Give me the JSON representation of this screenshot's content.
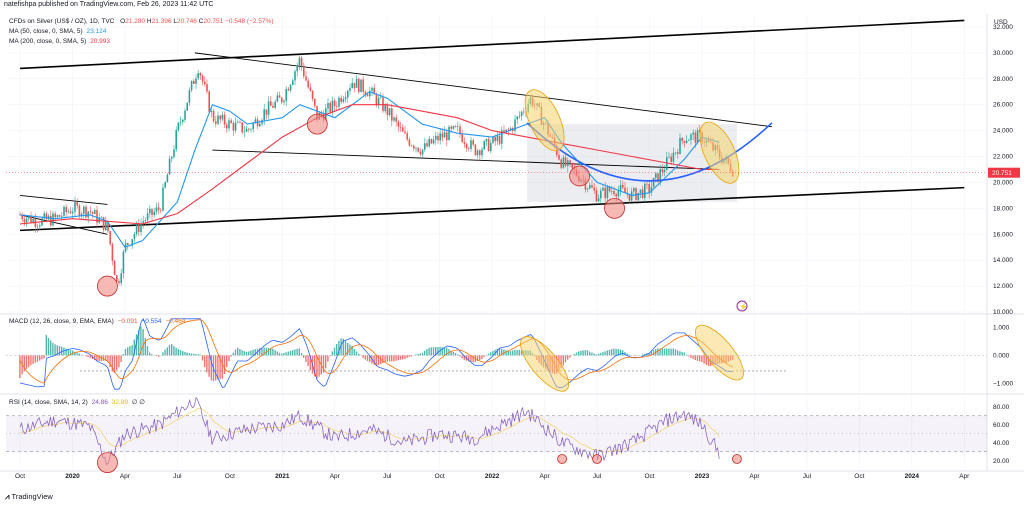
{
  "header": {
    "published": "natefishpa published on TradingView.com, Feb 26, 2023 11:42 UTC"
  },
  "price_legend": {
    "symbol": "CFDs on Silver (US$ / OZ), 1D, TVC",
    "o_label": "O",
    "o": "21.280",
    "h_label": "H",
    "h": "21.396",
    "l_label": "L",
    "l": "20.746",
    "c_label": "C",
    "c": "20.751",
    "change": "−0.548 (−2.57%)",
    "ma50": "MA (50, close, 0, SMA, 5)",
    "ma50_value": "23.124",
    "ma200": "MA (200, close, 0, SMA, 5)",
    "ma200_value": "20.993"
  },
  "macd_legend": {
    "label": "MACD (12, 26, close, 9, EMA, EMA)",
    "v1": "−0.091",
    "v2": "−0.554",
    "v3": "−0.464"
  },
  "rsi_legend": {
    "label": "RSI (14, close, SMA, 14, 2)",
    "v1": "24.86",
    "v2": "32.89",
    "v3": "∅ ∅"
  },
  "footer": {
    "logo_text": "TradingView"
  },
  "colors": {
    "candle_up": "#26a69a",
    "candle_down": "#ef5350",
    "ma50": "#2196f3",
    "ma200": "#f23645",
    "macd_line": "#2962ff",
    "signal_line": "#ff6d00",
    "rsi_line": "#7e57c2",
    "circle_fill": "#f28b82",
    "ellipse_fill": "#f6d36b",
    "arc": "#2962ff",
    "price_tag": "#f23645"
  },
  "chart_data": [
    {
      "type": "candlestick",
      "title": "CFDs on Silver (US$ / OZ), 1D, TVC",
      "currency": "USD",
      "x_ticks": [
        "Oct",
        "2020",
        "Apr",
        "Jul",
        "Oct",
        "2021",
        "Apr",
        "Jul",
        "Oct",
        "2022",
        "Apr",
        "Jul",
        "Oct",
        "2023",
        "Apr",
        "Jul",
        "Oct",
        "2024",
        "Apr"
      ],
      "ylim": [
        10,
        33
      ],
      "y_ticks": [
        "10.000",
        "12.000",
        "14.000",
        "16.000",
        "18.000",
        "20.000",
        "22.000",
        "24.000",
        "26.000",
        "28.000",
        "30.000",
        "32.000"
      ],
      "last_price": "20.751",
      "approx_close_series": {
        "dates": [
          "2019-10",
          "2019-11",
          "2019-12",
          "2020-01",
          "2020-02",
          "2020-03-01",
          "2020-03-18",
          "2020-04",
          "2020-05",
          "2020-06",
          "2020-07",
          "2020-08-07",
          "2020-09",
          "2020-10",
          "2020-11",
          "2020-12",
          "2021-01",
          "2021-02-01",
          "2021-03",
          "2021-04",
          "2021-05",
          "2021-06",
          "2021-07",
          "2021-08",
          "2021-09",
          "2021-10",
          "2021-11",
          "2021-12",
          "2022-01",
          "2022-02",
          "2022-03-08",
          "2022-04",
          "2022-05",
          "2022-06",
          "2022-07",
          "2022-08",
          "2022-09",
          "2022-10",
          "2022-11",
          "2022-12",
          "2023-01",
          "2023-02-24"
        ],
        "values": [
          17.5,
          17.0,
          17.2,
          18.0,
          17.8,
          16.5,
          12.0,
          15.0,
          17.0,
          18.0,
          24.0,
          29.0,
          25.0,
          24.5,
          24.0,
          25.5,
          26.5,
          29.5,
          25.0,
          26.0,
          27.8,
          27.0,
          25.5,
          23.5,
          22.5,
          23.5,
          24.0,
          22.5,
          23.0,
          24.0,
          26.5,
          24.5,
          21.5,
          20.5,
          19.0,
          19.5,
          19.0,
          19.5,
          21.5,
          23.5,
          23.5,
          21.0
        ]
      },
      "series": [
        {
          "name": "MA (50, close, 0, SMA, 5)",
          "dates": [
            "2019-10",
            "2019-12",
            "2020-02",
            "2020-03",
            "2020-04",
            "2020-05",
            "2020-06",
            "2020-07",
            "2020-08",
            "2020-09",
            "2020-10",
            "2020-11",
            "2021-01",
            "2021-02",
            "2021-03",
            "2021-04",
            "2021-05",
            "2021-06",
            "2021-07",
            "2021-08",
            "2021-09",
            "2021-11",
            "2022-01",
            "2022-03",
            "2022-04",
            "2022-05",
            "2022-06",
            "2022-07",
            "2022-08",
            "2022-09",
            "2022-10",
            "2022-11",
            "2022-12",
            "2023-01",
            "2023-02"
          ],
          "values": [
            17.5,
            17.2,
            17.5,
            17.0,
            15.0,
            15.5,
            17.0,
            18.5,
            22.5,
            26.0,
            25.5,
            24.5,
            25.0,
            26.0,
            25.5,
            25.0,
            26.0,
            27.0,
            26.5,
            25.5,
            24.5,
            23.8,
            23.5,
            24.5,
            25.0,
            23.0,
            21.5,
            20.0,
            19.5,
            19.0,
            19.2,
            20.5,
            21.8,
            23.5,
            23.1
          ]
        },
        {
          "name": "MA (200, close, 0, SMA, 5)",
          "dates": [
            "2019-10",
            "2020-01",
            "2020-03",
            "2020-05",
            "2020-07",
            "2020-09",
            "2020-11",
            "2021-01",
            "2021-03",
            "2021-05",
            "2021-07",
            "2021-09",
            "2021-11",
            "2022-01",
            "2022-03",
            "2022-05",
            "2022-07",
            "2022-09",
            "2022-11",
            "2023-01",
            "2023-02"
          ],
          "values": [
            16.8,
            17.2,
            17.0,
            16.8,
            17.6,
            19.5,
            21.5,
            23.5,
            25.0,
            26.0,
            26.0,
            25.5,
            25.0,
            24.0,
            23.5,
            23.0,
            22.5,
            22.0,
            21.5,
            21.0,
            21.0
          ]
        }
      ],
      "trendlines": [
        {
          "from": [
            "2019-10",
            28.8
          ],
          "to": [
            "2024-04",
            32.5
          ]
        },
        {
          "from": [
            "2019-10",
            16.3
          ],
          "to": [
            "2024-04",
            19.6
          ]
        },
        {
          "from": [
            "2020-08",
            30.0
          ],
          "to": [
            "2023-05",
            24.3
          ]
        },
        {
          "from": [
            "2020-09",
            22.5
          ],
          "to": [
            "2023-02",
            21.0
          ]
        },
        {
          "from": [
            "2019-10",
            19.0
          ],
          "to": [
            "2020-03",
            18.3
          ]
        },
        {
          "from": [
            "2019-10",
            17.5
          ],
          "to": [
            "2020-03",
            16.0
          ]
        }
      ],
      "zones": [
        {
          "from": [
            "2022-03",
            24.5
          ],
          "to": [
            "2023-03",
            18.5
          ]
        }
      ],
      "markers": [
        {
          "shape": "circle",
          "at": [
            "2020-03",
            12.0
          ]
        },
        {
          "shape": "circle",
          "at": [
            "2021-03",
            24.5
          ]
        },
        {
          "shape": "circle",
          "at": [
            "2022-06",
            20.5
          ]
        },
        {
          "shape": "circle",
          "at": [
            "2022-08",
            18.0
          ]
        },
        {
          "shape": "ellipse",
          "at": [
            "2022-04",
            24.8
          ]
        },
        {
          "shape": "ellipse",
          "at": [
            "2023-02",
            22.3
          ]
        }
      ],
      "arc": {
        "from": [
          "2022-03",
          24.6
        ],
        "bottom": [
          "2022-10",
          17.8
        ],
        "to": [
          "2023-05",
          24.6
        ]
      }
    },
    {
      "type": "line",
      "title": "MACD (12, 26, close, 9, EMA, EMA)",
      "y_ticks": [
        "1.000",
        "0.000",
        "−1.000"
      ],
      "ylim": [
        -1.3,
        1.4
      ],
      "values_shown": [
        "−0.091",
        "−0.554",
        "−0.464"
      ]
    },
    {
      "type": "line",
      "title": "RSI (14, close, SMA, 14, 2)",
      "y_ticks": [
        "80.00",
        "60.00",
        "40.00",
        "20.00"
      ],
      "ylim": [
        12,
        92
      ],
      "bands": [
        70,
        30
      ],
      "values_shown": [
        "24.86",
        "32.89"
      ],
      "approx_series": {
        "dates": [
          "2019-10",
          "2019-12",
          "2020-01",
          "2020-02",
          "2020-03",
          "2020-04",
          "2020-06",
          "2020-08",
          "2020-09",
          "2020-11",
          "2021-01",
          "2021-02",
          "2021-04",
          "2021-06",
          "2021-08",
          "2021-10",
          "2021-12",
          "2022-02",
          "2022-03",
          "2022-05",
          "2022-06",
          "2022-07",
          "2022-09",
          "2022-11",
          "2022-12",
          "2023-01",
          "2023-02"
        ],
        "values": [
          55,
          65,
          62,
          58,
          18,
          50,
          60,
          88,
          45,
          55,
          60,
          70,
          45,
          55,
          40,
          50,
          45,
          65,
          75,
          40,
          32,
          25,
          40,
          65,
          72,
          60,
          28
        ]
      },
      "markers": [
        {
          "shape": "circle",
          "at": [
            "2020-03",
            18
          ]
        },
        {
          "shape": "circle",
          "at": [
            "2022-05",
            22
          ]
        },
        {
          "shape": "circle",
          "at": [
            "2022-07",
            22
          ]
        },
        {
          "shape": "circle",
          "at": [
            "2023-03",
            22
          ]
        }
      ]
    }
  ]
}
